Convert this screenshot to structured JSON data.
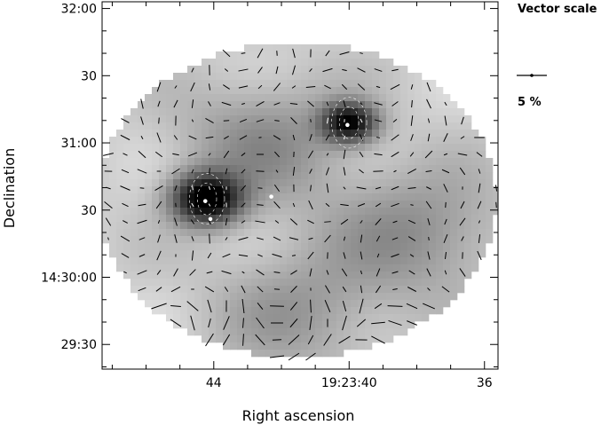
{
  "chart_data": {
    "type": "heatmap",
    "title": "",
    "xlabel": "Right ascension",
    "ylabel": "Declination",
    "x_ticks": [
      {
        "label": "44",
        "ra_s": 44
      },
      {
        "label": "19:23:40",
        "ra_s": 40
      },
      {
        "label": "36",
        "ra_s": 36
      }
    ],
    "y_ticks": [
      {
        "label": "32:00",
        "dec_s": 90
      },
      {
        "label": "30",
        "dec_s": 60
      },
      {
        "label": "31:00",
        "dec_s": 30
      },
      {
        "label": "30",
        "dec_s": 0
      },
      {
        "label": "14:30:00",
        "dec_s": -30
      },
      {
        "label": "29:30",
        "dec_s": -60
      }
    ],
    "xlim_ra_s": [
      47.3,
      35.6
    ],
    "ylim_dec_s": [
      -71,
      93
    ],
    "x_reversed": true,
    "legend": {
      "title": "Vector scale",
      "scale_label": "5 %",
      "position": "right"
    },
    "sources": [
      {
        "ra_s": 44.25,
        "dec_s": 4
      },
      {
        "ra_s": 44.1,
        "dec_s": -4
      },
      {
        "ra_s": 42.3,
        "dec_s": 6
      },
      {
        "ra_s": 40.05,
        "dec_s": 38
      }
    ],
    "intensity_peaks": [
      {
        "ra_s": 44.2,
        "dec_s": 5,
        "amp": 1.0,
        "width_s": 1.0
      },
      {
        "ra_s": 40.0,
        "dec_s": 39,
        "amp": 0.85,
        "width_s": 0.8
      },
      {
        "ra_s": 42.5,
        "dec_s": 30,
        "amp": 0.25,
        "width_s": 2.5
      },
      {
        "ra_s": 38.0,
        "dec_s": -10,
        "amp": 0.25,
        "width_s": 2.5
      },
      {
        "ra_s": 41.5,
        "dec_s": -45,
        "amp": 0.2,
        "width_s": 2.5
      }
    ],
    "colors": {
      "background": "#ffffff",
      "emission": "#000000",
      "vectors": "#000000",
      "contours": "#ffffff"
    }
  }
}
